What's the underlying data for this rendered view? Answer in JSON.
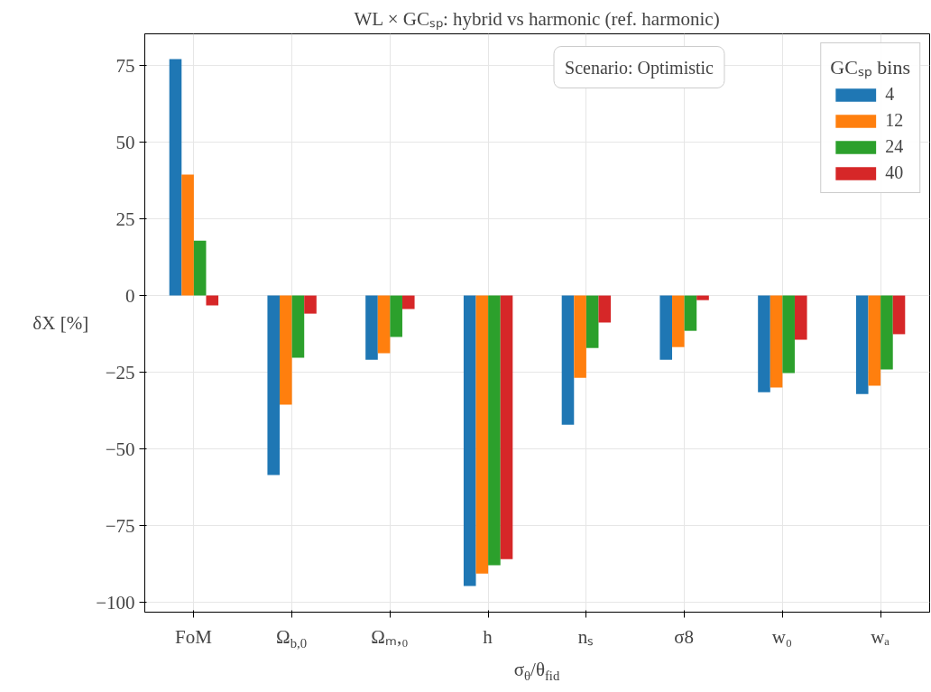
{
  "chart_data": {
    "type": "bar",
    "title": "WL × GCₛₚ: hybrid vs harmonic (ref. harmonic)",
    "xlabel": "σ$_{θ}$/θ$_{fid}$",
    "ylabel": "δX [%]",
    "legend_title": "GCₛₚ bins",
    "categories": [
      "FoM",
      "Ω$_{b,0}$",
      "Ωₘ,₀",
      "h",
      "nₛ",
      "σ8",
      "w₀",
      "wₐ"
    ],
    "series": [
      {
        "name": "4",
        "color": "#1f77b4",
        "values": [
          77.1,
          -58.5,
          -20.9,
          -94.7,
          -42.1,
          -20.9,
          -31.5,
          -32.1
        ]
      },
      {
        "name": "12",
        "color": "#ff7f0e",
        "values": [
          39.4,
          -35.6,
          -18.8,
          -90.6,
          -26.8,
          -16.8,
          -30.0,
          -29.4
        ]
      },
      {
        "name": "24",
        "color": "#2ca02c",
        "values": [
          17.9,
          -20.3,
          -13.5,
          -87.9,
          -17.1,
          -11.5,
          -25.3,
          -24.1
        ]
      },
      {
        "name": "40",
        "color": "#d62728",
        "values": [
          -3.2,
          -5.9,
          -4.4,
          -85.9,
          -8.8,
          -1.5,
          -14.4,
          -12.6
        ]
      }
    ],
    "annotations": [
      "Scenario: Optimistic"
    ],
    "ylim": [
      -103.2,
      85.3
    ],
    "yticks": [
      -100,
      -75,
      -50,
      -25,
      0,
      25,
      50,
      75
    ],
    "grid": true,
    "legend": "top right"
  }
}
